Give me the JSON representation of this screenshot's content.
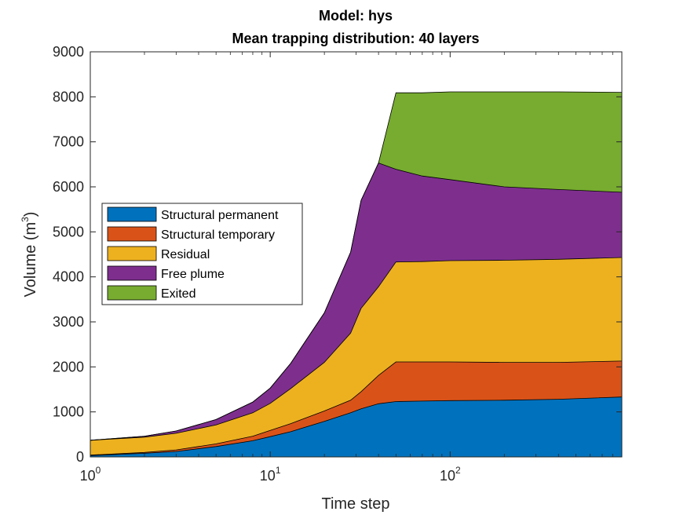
{
  "chart_data": {
    "type": "area",
    "stacked": true,
    "title": "Model: hys",
    "subtitle": "Mean trapping distribution: 40 layers",
    "xlabel": "Time step",
    "ylabel": "Volume (m",
    "ylabel_sup": "3",
    "ylabel_suffix": ")",
    "xscale": "log",
    "xlim": [
      1,
      900
    ],
    "ylim": [
      0,
      9000
    ],
    "x_ticks": [
      {
        "base": "10",
        "exp": "0",
        "value": 1
      },
      {
        "base": "10",
        "exp": "1",
        "value": 10
      },
      {
        "base": "10",
        "exp": "2",
        "value": 100
      }
    ],
    "y_ticks": [
      0,
      1000,
      2000,
      3000,
      4000,
      5000,
      6000,
      7000,
      8000,
      9000
    ],
    "grid": false,
    "legend_position": "left-middle",
    "x": [
      1,
      2,
      3,
      5,
      8,
      10,
      13,
      20,
      28,
      32,
      40,
      50,
      70,
      100,
      200,
      400,
      900
    ],
    "series": [
      {
        "name": "Structural permanent",
        "color": "#0072BD",
        "values": [
          30,
          80,
          120,
          230,
          360,
          450,
          560,
          790,
          980,
          1070,
          1180,
          1230,
          1240,
          1250,
          1260,
          1280,
          1330
        ]
      },
      {
        "name": "Structural temporary",
        "color": "#D95319",
        "values": [
          10,
          20,
          35,
          60,
          100,
          140,
          180,
          230,
          280,
          380,
          630,
          880,
          870,
          860,
          840,
          820,
          800
        ]
      },
      {
        "name": "Residual",
        "color": "#EDB120",
        "values": [
          330,
          340,
          370,
          420,
          520,
          600,
          780,
          1080,
          1490,
          1850,
          1970,
          2220,
          2230,
          2250,
          2270,
          2290,
          2300
        ]
      },
      {
        "name": "Free plume",
        "color": "#7E2F8E",
        "values": [
          0,
          20,
          50,
          120,
          240,
          340,
          560,
          1100,
          1800,
          2400,
          2750,
          2060,
          1900,
          1800,
          1630,
          1550,
          1450
        ]
      },
      {
        "name": "Exited",
        "color": "#77AC30",
        "values": [
          0,
          0,
          0,
          0,
          0,
          0,
          0,
          0,
          0,
          0,
          0,
          1700,
          1850,
          1950,
          2110,
          2170,
          2220
        ]
      }
    ]
  }
}
